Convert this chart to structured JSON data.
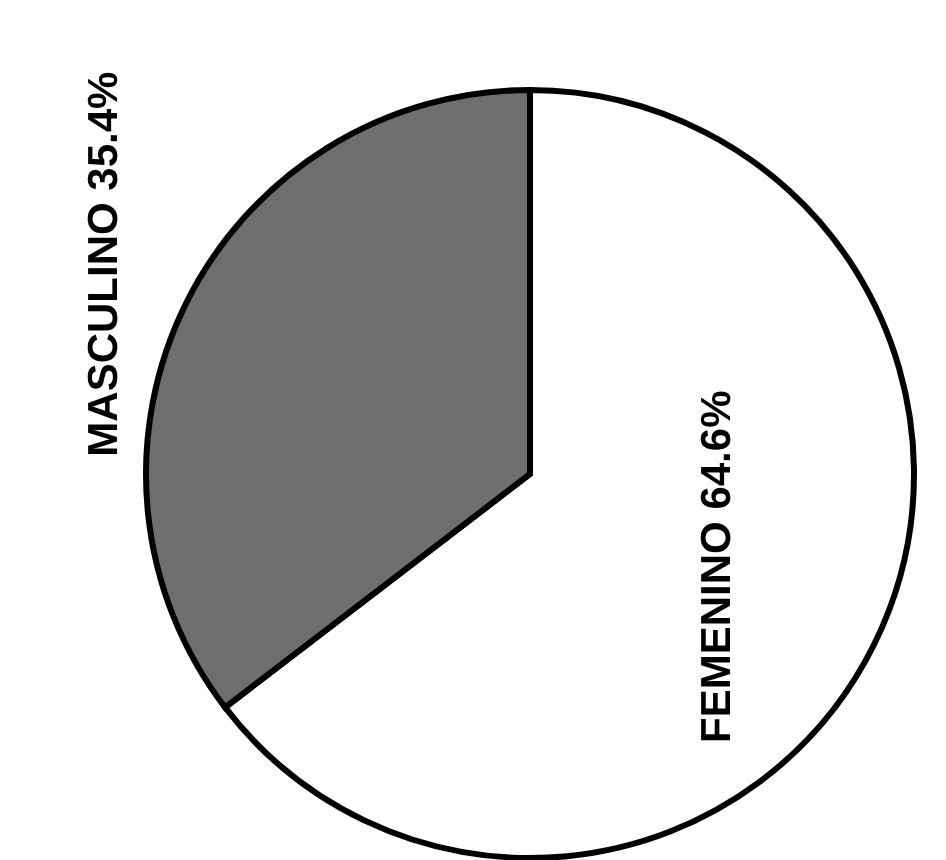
{
  "chart_data": {
    "type": "pie",
    "categories": [
      "MASCULINO",
      "FEMENINO"
    ],
    "values": [
      35.4,
      64.6
    ],
    "colors": [
      "#6e6e6e",
      "#ffffff"
    ],
    "value_labels": [
      "35.4%",
      "64.6%"
    ]
  }
}
